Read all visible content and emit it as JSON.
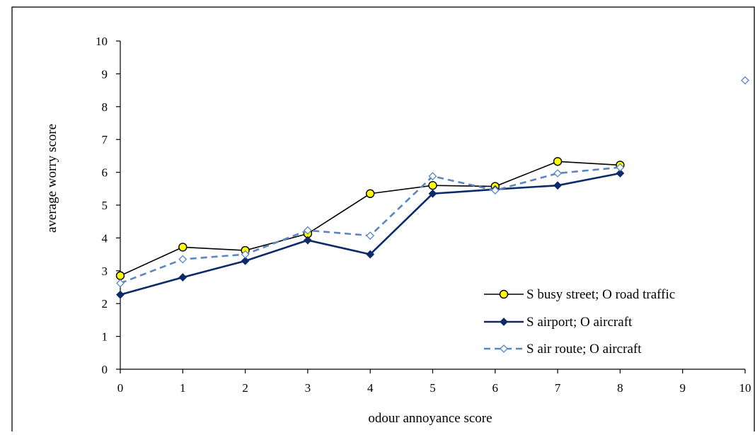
{
  "chart_data": {
    "type": "line",
    "title": "",
    "xlabel": "odour annoyance  score",
    "ylabel": "average  worry  score",
    "xlim": [
      0,
      10
    ],
    "ylim": [
      0,
      10
    ],
    "x_ticks": [
      0,
      1,
      2,
      3,
      4,
      5,
      6,
      7,
      8,
      9,
      10
    ],
    "y_ticks": [
      0,
      1,
      2,
      3,
      4,
      5,
      6,
      7,
      8,
      9,
      10
    ],
    "grid": false,
    "legend_position": "bottom-right",
    "series": [
      {
        "name": "S busy street;  O road traffic",
        "color": "#000000",
        "marker_fill": "#ffff00",
        "marker": "circle",
        "line_style": "solid",
        "x": [
          0,
          1,
          2,
          3,
          4,
          5,
          6,
          7,
          8
        ],
        "values": [
          2.85,
          3.72,
          3.62,
          4.13,
          5.35,
          5.6,
          5.57,
          6.33,
          6.22
        ]
      },
      {
        "name": "S airport;  O aircraft",
        "color": "#0d2a6b",
        "marker_fill": "#0d2a6b",
        "marker": "diamond",
        "line_style": "solid",
        "x": [
          0,
          1,
          2,
          3,
          4,
          5,
          6,
          7,
          8
        ],
        "values": [
          2.27,
          2.8,
          3.3,
          3.93,
          3.5,
          5.35,
          5.48,
          5.6,
          5.97
        ]
      },
      {
        "name": "S air route;  O aircraft",
        "color": "#5b86bd",
        "marker_fill": "#ffffff",
        "marker": "diamond-open",
        "line_style": "dashed",
        "x": [
          0,
          1,
          2,
          3,
          4,
          5,
          6,
          7,
          8,
          10
        ],
        "values": [
          2.62,
          3.35,
          3.5,
          4.23,
          4.07,
          5.88,
          5.45,
          5.97,
          6.15,
          8.8
        ],
        "connected_until_index": 8
      }
    ]
  }
}
